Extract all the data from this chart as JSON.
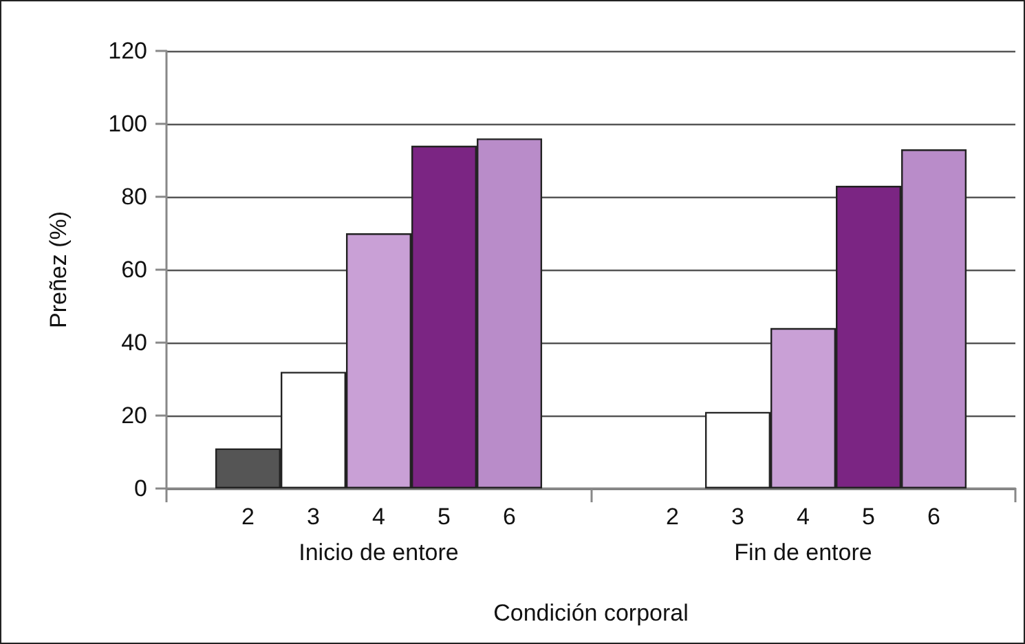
{
  "chart_data": {
    "type": "bar",
    "xlabel": "Condición corporal",
    "ylabel": "Preñez (%)",
    "categories": [
      "Inicio de entore",
      "Fin de entore"
    ],
    "series": [
      {
        "name": "2",
        "color": "#555555",
        "values": [
          11,
          null
        ]
      },
      {
        "name": "3",
        "color": "#ffffff",
        "values": [
          32,
          21
        ]
      },
      {
        "name": "4",
        "color": "#c9a0d6",
        "values": [
          70,
          44
        ]
      },
      {
        "name": "5",
        "color": "#7b2583",
        "values": [
          94,
          83
        ]
      },
      {
        "name": "6",
        "color": "#b98cc9",
        "values": [
          96,
          93
        ]
      }
    ],
    "ylim": [
      0,
      120
    ],
    "yticks": [
      0,
      20,
      40,
      60,
      80,
      100,
      120
    ],
    "grid": "y",
    "legend": false
  }
}
